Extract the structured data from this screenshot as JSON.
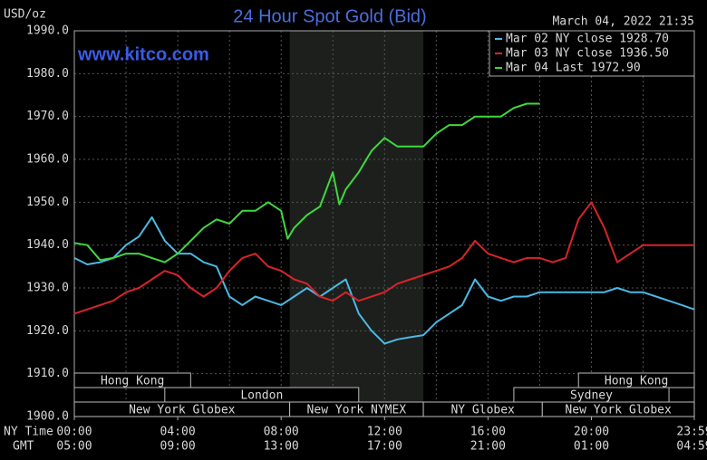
{
  "chart_data": {
    "type": "line",
    "title": "24 Hour Spot Gold (Bid)",
    "timestamp": "March 04, 2022 21:35",
    "watermark": "www.kitco.com",
    "ylabel": "USD/oz",
    "x_axis_labels": [
      "NY Time",
      "GMT"
    ],
    "xlim": [
      0,
      23.98
    ],
    "ylim": [
      1900,
      1990
    ],
    "yticks": [
      {
        "value": 1900,
        "label": "1900.0"
      },
      {
        "value": 1910,
        "label": "1910.0"
      },
      {
        "value": 1920,
        "label": "1920.0"
      },
      {
        "value": 1930,
        "label": "1930.0"
      },
      {
        "value": 1940,
        "label": "1940.0"
      },
      {
        "value": 1950,
        "label": "1950.0"
      },
      {
        "value": 1960,
        "label": "1960.0"
      },
      {
        "value": 1970,
        "label": "1970.0"
      },
      {
        "value": 1980,
        "label": "1980.0"
      },
      {
        "value": 1990,
        "label": "1990.0"
      }
    ],
    "xticks": [
      {
        "value": 0,
        "label": "00:00"
      },
      {
        "value": 4,
        "label": "04:00"
      },
      {
        "value": 8,
        "label": "08:00"
      },
      {
        "value": 12,
        "label": "12:00"
      },
      {
        "value": 16,
        "label": "16:00"
      },
      {
        "value": 20,
        "label": "20:00"
      },
      {
        "value": 23.98,
        "label": "23:59"
      }
    ],
    "gmt_labels": [
      "05:00",
      "09:00",
      "13:00",
      "17:00",
      "21:00",
      "01:00",
      "04:59"
    ],
    "xgrid": [
      0,
      2,
      4,
      6,
      8,
      10,
      12,
      14,
      16,
      18,
      20,
      22
    ],
    "grid": true,
    "legend": "top-right",
    "shaded": [
      8.33,
      13.5
    ],
    "sessions": [
      [
        {
          "label": "Hong Kong",
          "start": 0,
          "end": 4.5
        },
        {
          "label": "Hong Kong",
          "start": 19.5,
          "end": 23.98
        }
      ],
      [
        {
          "label": "London",
          "start": 3.5,
          "end": 11
        },
        {
          "label": "Sydney",
          "start": 17,
          "end": 23
        }
      ],
      [
        {
          "label": "New York Globex",
          "start": 0,
          "end": 8.33
        },
        {
          "label": "New York NYMEX",
          "start": 8.33,
          "end": 13.5
        },
        {
          "label": "NY Globex",
          "start": 13.5,
          "end": 18.1
        },
        {
          "label": "New York Globex",
          "start": 18.1,
          "end": 23.98
        }
      ]
    ],
    "series": [
      {
        "name": "Mar 02 NY close 1928.70",
        "color": "#4cb8e4",
        "x": [
          0,
          0.5,
          1,
          1.5,
          2,
          2.5,
          3,
          3.5,
          4,
          4.5,
          5,
          5.5,
          6,
          6.5,
          7,
          7.5,
          8,
          8.5,
          9,
          9.5,
          10,
          10.5,
          11,
          11.5,
          12,
          12.5,
          13,
          13.5,
          14,
          14.5,
          15,
          15.5,
          16,
          16.5,
          17,
          17.5,
          18,
          18.5,
          19,
          19.5,
          20,
          20.5,
          21,
          21.5,
          22,
          22.5,
          23,
          23.5,
          23.98
        ],
        "values": [
          1937,
          1935.5,
          1936,
          1937,
          1940,
          1942,
          1946.5,
          1941,
          1938,
          1938,
          1936,
          1935,
          1928,
          1926,
          1928,
          1927,
          1926,
          1928,
          1930,
          1928,
          1930,
          1932,
          1924,
          1920,
          1917,
          1918,
          1918.5,
          1919,
          1922,
          1924,
          1926,
          1932,
          1928,
          1927,
          1928,
          1928,
          1929,
          1929,
          1929,
          1929,
          1929,
          1929,
          1930,
          1929,
          1929,
          1928,
          1927,
          1926,
          1925
        ]
      },
      {
        "name": "Mar 03 NY close 1936.50",
        "color": "#d8242a",
        "x": [
          0,
          0.5,
          1,
          1.5,
          2,
          2.5,
          3,
          3.5,
          4,
          4.5,
          5,
          5.5,
          6,
          6.5,
          7,
          7.5,
          8,
          8.5,
          9,
          9.5,
          10,
          10.5,
          11,
          11.5,
          12,
          12.5,
          13,
          13.5,
          14,
          14.5,
          15,
          15.5,
          16,
          16.5,
          17,
          17.5,
          18,
          18.5,
          19,
          19.5,
          20,
          20.5,
          21,
          21.5,
          22,
          22.5,
          23,
          23.5,
          23.98
        ],
        "values": [
          1924,
          1925,
          1926,
          1927,
          1929,
          1930,
          1932,
          1934,
          1933,
          1930,
          1928,
          1930,
          1934,
          1937,
          1938,
          1935,
          1934,
          1932,
          1931,
          1928,
          1927,
          1929,
          1927,
          1928,
          1929,
          1931,
          1932,
          1933,
          1934,
          1935,
          1937,
          1941,
          1938,
          1937,
          1936,
          1937,
          1937,
          1936,
          1937,
          1946,
          1950,
          1944,
          1936,
          1938,
          1940,
          1940,
          1940,
          1940,
          1940
        ]
      },
      {
        "name": "Mar 04 Last 1972.90",
        "color": "#3fd83f",
        "x": [
          0,
          0.5,
          1,
          1.5,
          2,
          2.5,
          3,
          3.5,
          4,
          4.5,
          5,
          5.5,
          6,
          6.5,
          7,
          7.5,
          8,
          8.25,
          8.5,
          9,
          9.5,
          10,
          10.25,
          10.5,
          11,
          11.5,
          12,
          12.5,
          13,
          13.5,
          14,
          14.5,
          15,
          15.5,
          16,
          16.5,
          17,
          17.5,
          18
        ],
        "values": [
          1940.5,
          1940,
          1936.5,
          1937,
          1938,
          1938,
          1937,
          1936,
          1938,
          1941,
          1944,
          1946,
          1945,
          1948,
          1948,
          1950,
          1948,
          1941.5,
          1944,
          1947,
          1949,
          1957,
          1949.5,
          1953,
          1957,
          1962,
          1965,
          1963,
          1963,
          1963,
          1966,
          1968,
          1968,
          1970,
          1970,
          1970,
          1972,
          1973,
          1973
        ]
      }
    ]
  }
}
